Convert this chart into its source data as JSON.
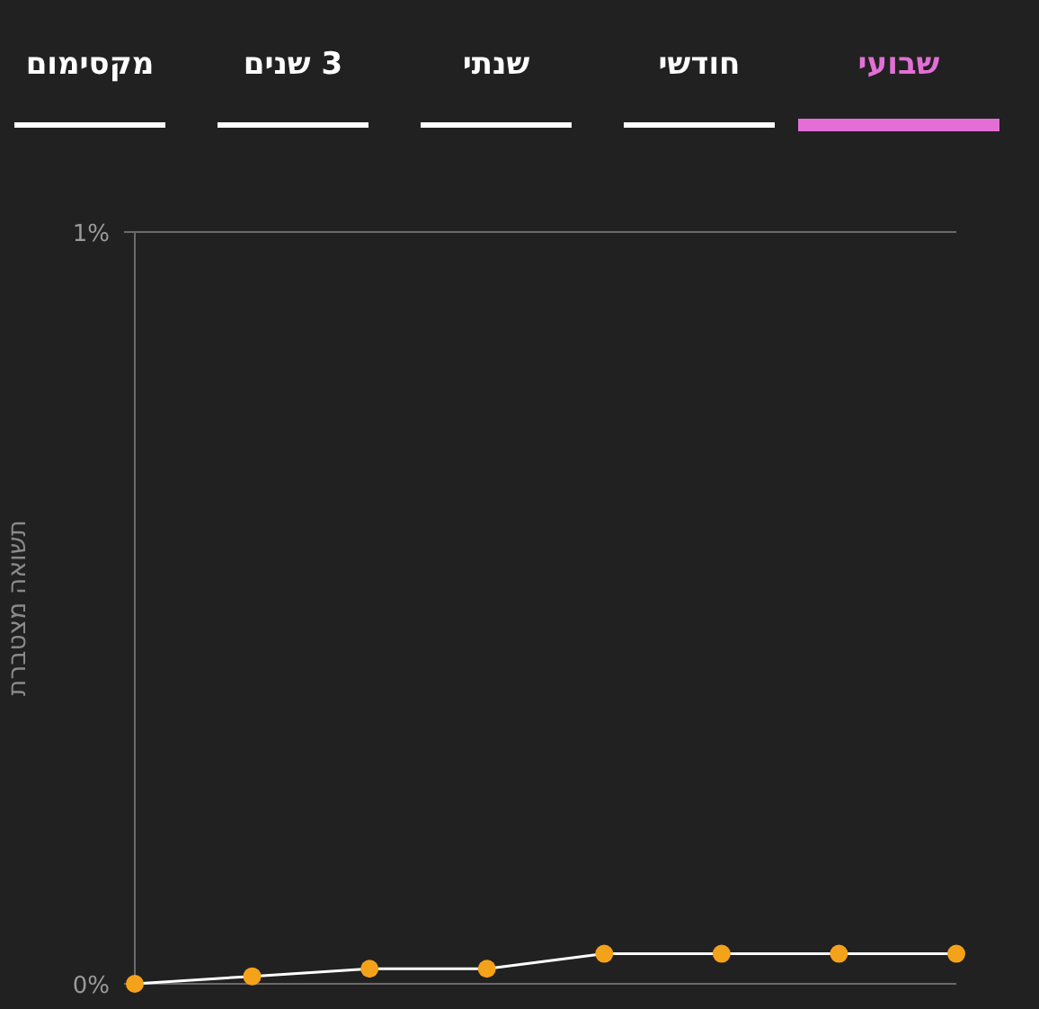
{
  "chart_data": {
    "type": "line",
    "ylabel": "תשואה מצטברת",
    "annotations": [
      "שבועי",
      "חודשי",
      "שנתי",
      "3 שנים",
      "מקסימום"
    ],
    "categories": [
      null,
      null,
      null,
      null,
      null,
      null,
      null,
      null
    ],
    "series": [
      {
        "color": "#ffffff",
        "colors": [
          "#f5a21b",
          "#f5a21b",
          "#f5a21b",
          "#f5a21b",
          "#f5a21b",
          "#f5a21b",
          "#f5a21b",
          "#f5a21b"
        ],
        "values": [
          0,
          0.01,
          0.02,
          0.02,
          0.04,
          0.04,
          0.04,
          0.04
        ]
      }
    ],
    "ylim": [
      0,
      1
    ],
    "yticks": [
      {
        "value": 0,
        "label": "0%"
      },
      {
        "value": 1,
        "label": "1%"
      }
    ],
    "grid": "y",
    "marker": "circle",
    "line_style": "solid"
  }
}
